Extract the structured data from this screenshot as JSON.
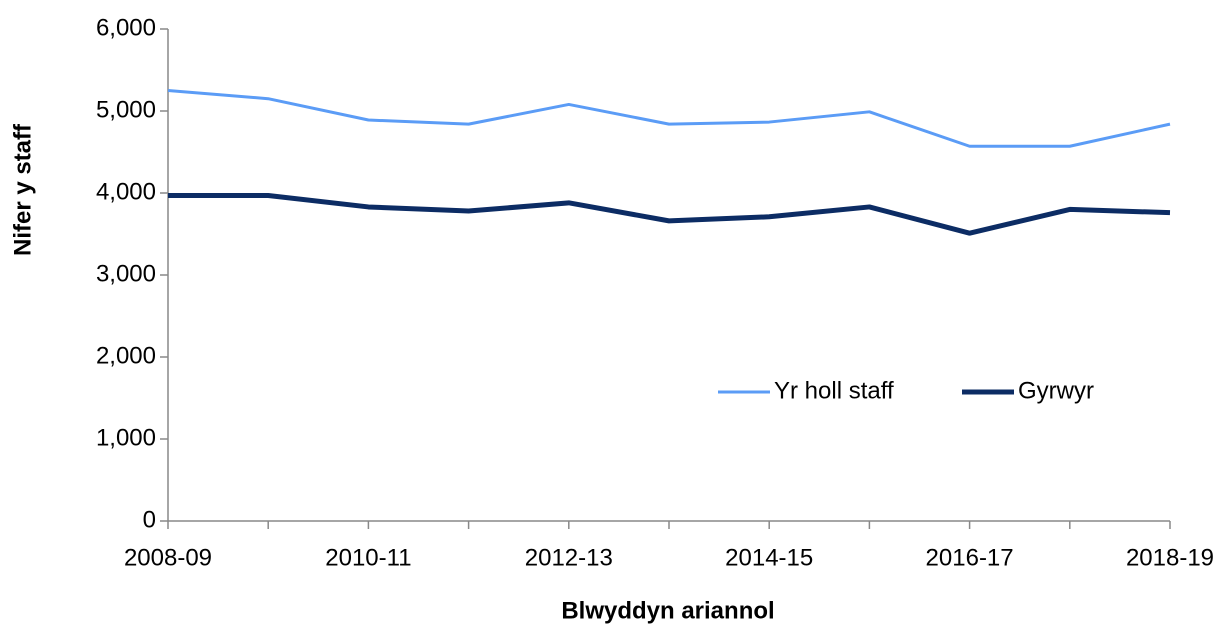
{
  "chart_data": {
    "type": "line",
    "y_label": "Nifer y staff",
    "x_label": "Blwyddyn ariannol",
    "categories": [
      "2008-09",
      null,
      "2010-11",
      null,
      "2012-13",
      null,
      "2014-15",
      null,
      "2016-17",
      null,
      "2018-19"
    ],
    "series": [
      {
        "name": "Yr holl staff",
        "color": "#5b9cf6",
        "width": 3,
        "values": [
          5250,
          5150,
          4890,
          4840,
          5080,
          4840,
          4865,
          4990,
          4570,
          4570,
          4840
        ]
      },
      {
        "name": "Gyrwyr",
        "color": "#0c2c64",
        "width": 5,
        "values": [
          3970,
          3970,
          3830,
          3780,
          3880,
          3660,
          3710,
          3830,
          3510,
          3800,
          3760
        ]
      }
    ],
    "ylim": [
      0,
      6000
    ],
    "yticks": [
      0,
      {
        "value": 1000,
        "label": "1,000"
      },
      {
        "value": 2000,
        "label": "2,000"
      },
      {
        "value": 3000,
        "label": "3,000"
      },
      {
        "value": 4000,
        "label": "4,000"
      },
      {
        "value": 5000,
        "label": "5,000"
      },
      {
        "value": 6000,
        "label": "6,000"
      }
    ],
    "grid": false
  }
}
